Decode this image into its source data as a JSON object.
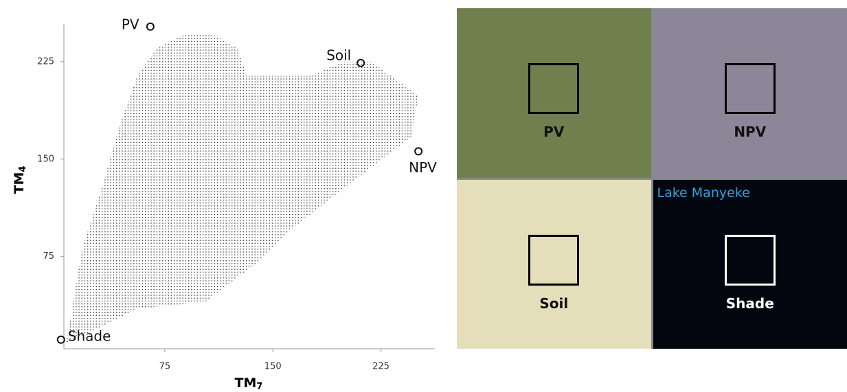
{
  "chart_data": {
    "type": "scatter",
    "x_label": {
      "text": "TM",
      "subscript": "7"
    },
    "y_label": {
      "text": "TM",
      "subscript": "4"
    },
    "xlim": [
      5,
      260
    ],
    "ylim": [
      4,
      254
    ],
    "xticks": [
      75,
      150,
      225
    ],
    "yticks": [
      75,
      150,
      225
    ],
    "cloud": {
      "color": "#222222",
      "x": [
        7,
        13,
        18,
        32,
        44,
        56,
        70,
        89,
        108,
        125,
        132,
        175,
        199,
        218,
        251,
        246,
        208,
        165,
        141,
        103,
        56,
        27
      ],
      "y": [
        9,
        51,
        82,
        130,
        177,
        214,
        236,
        246,
        246,
        236,
        214,
        214,
        225,
        225,
        199,
        167,
        135,
        98,
        72,
        40,
        35,
        19
      ]
    },
    "endmembers": {
      "color": "#111111",
      "names": [
        "PV",
        "Soil",
        "NPV",
        "Shade"
      ],
      "x": [
        65,
        211,
        251,
        3
      ],
      "y": [
        252,
        224,
        156,
        11
      ]
    }
  },
  "panels": [
    {
      "label": "PV",
      "background": "#6f7f4e"
    },
    {
      "label": "NPV",
      "background": "#8c8798"
    },
    {
      "label": "Soil",
      "background": "#e4dfba"
    },
    {
      "label": "Shade",
      "background": "#04060f",
      "caption": "Lake Manyeke"
    }
  ]
}
